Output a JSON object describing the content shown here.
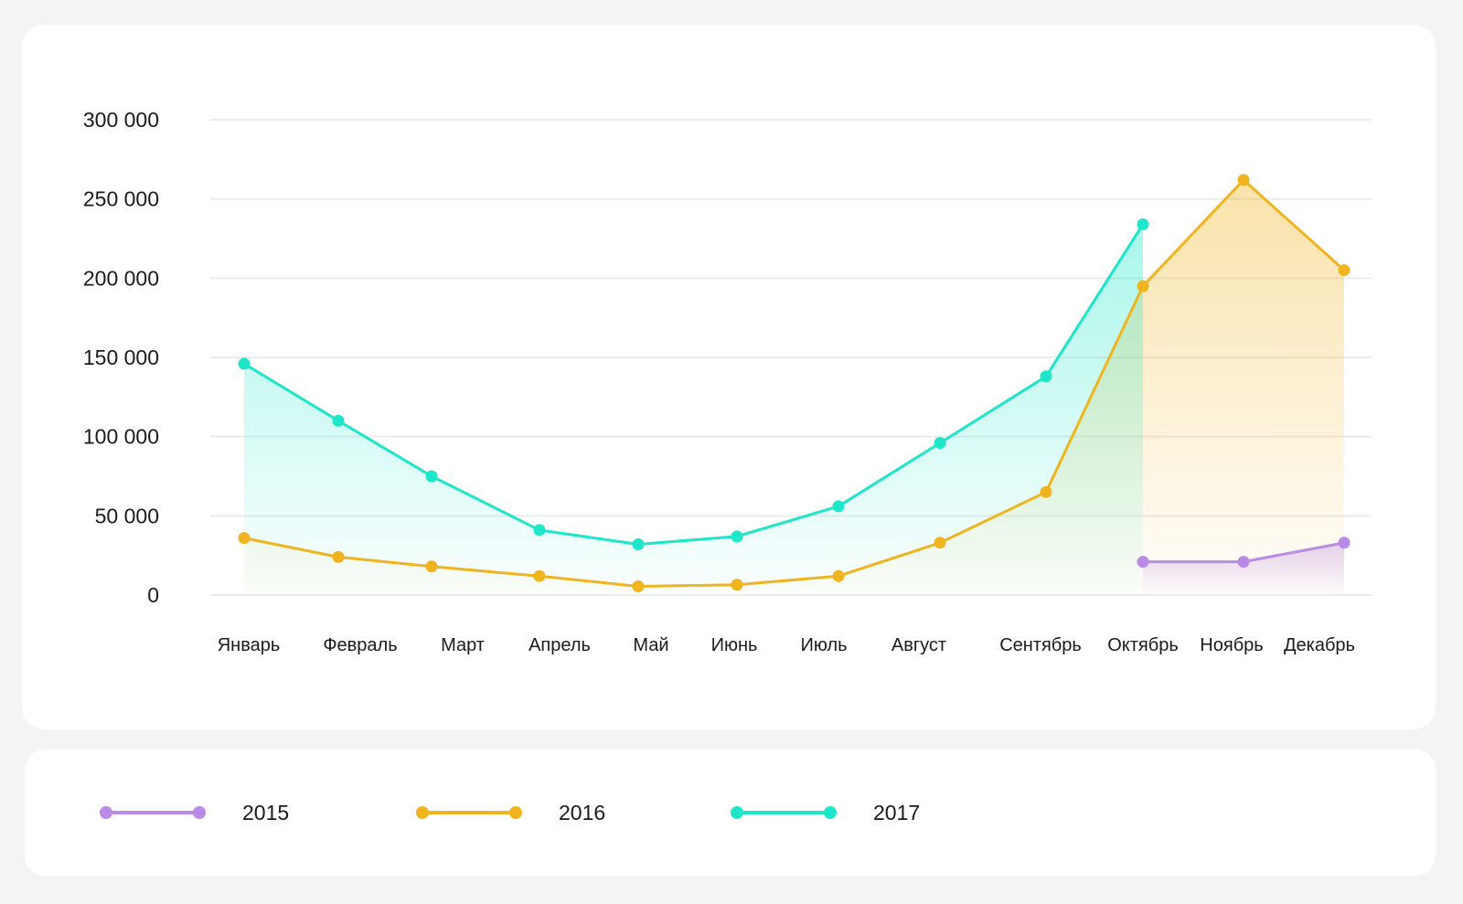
{
  "chart_data": {
    "type": "line",
    "title": "",
    "xlabel": "",
    "ylabel": "",
    "ylim": [
      0,
      300000
    ],
    "yticks": [
      0,
      50000,
      100000,
      150000,
      200000,
      250000,
      300000
    ],
    "ytick_labels": [
      "0",
      "50 000",
      "100 000",
      "150 000",
      "200 000",
      "250 000",
      "300 000"
    ],
    "grid": true,
    "categories": [
      "Январь",
      "Февраль",
      "Март",
      "Апрель",
      "Май",
      "Июнь",
      "Июль",
      "Август",
      "Сентябрь",
      "Октябрь",
      "Ноябрь",
      "Декабрь"
    ],
    "series": [
      {
        "name": "2015",
        "color": "#b98ae6",
        "values": [
          null,
          null,
          null,
          null,
          null,
          null,
          null,
          null,
          null,
          21000,
          21000,
          33000
        ]
      },
      {
        "name": "2016",
        "color": "#f0b41e",
        "values": [
          36000,
          24000,
          18000,
          12000,
          5500,
          6500,
          12000,
          33000,
          65000,
          195000,
          262000,
          205000
        ]
      },
      {
        "name": "2017",
        "color": "#1ee6c8",
        "values": [
          146000,
          110000,
          75000,
          41000,
          32000,
          37000,
          56000,
          96000,
          138000,
          234000,
          null,
          null
        ]
      }
    ],
    "legend_position": "bottom"
  }
}
